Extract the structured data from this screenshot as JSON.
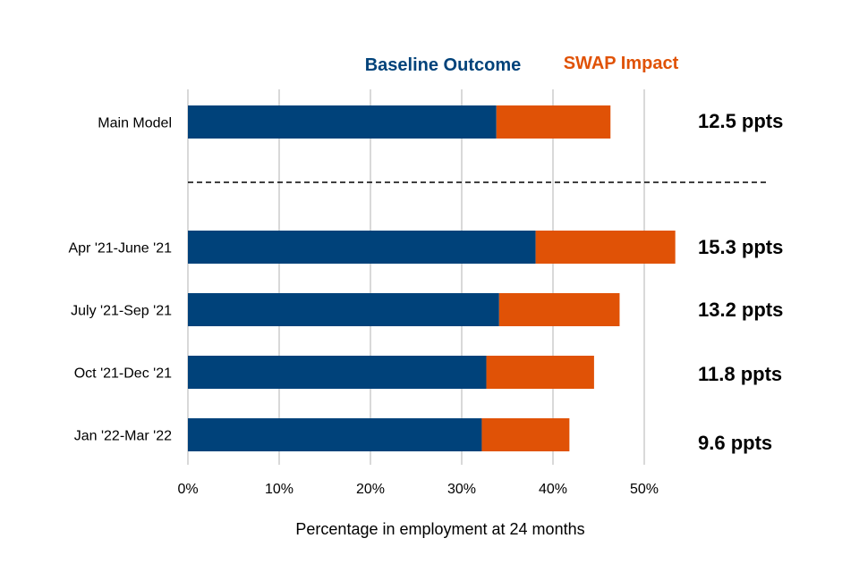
{
  "chart_data": {
    "type": "bar",
    "orientation": "horizontal",
    "stacked": true,
    "title": "",
    "xlabel": "Percentage in employment at 24 months",
    "ylabel": "",
    "xlim": [
      0,
      55
    ],
    "xticks": [
      0,
      10,
      20,
      30,
      40,
      50
    ],
    "xtick_labels": [
      "0%",
      "10%",
      "20%",
      "30%",
      "40%",
      "50%"
    ],
    "grid": "vertical",
    "legend": {
      "placement": "top",
      "entries": [
        "Baseline Outcome",
        "SWAP Impact"
      ]
    },
    "categories": [
      "Main Model",
      "Apr '21-June '21",
      "July '21-Sep '21",
      "Oct '21-Dec '21",
      "Jan '22-Mar '22"
    ],
    "separator_after_category": "Main Model",
    "series": [
      {
        "name": "Baseline Outcome",
        "color": "#00427A",
        "values": [
          33.8,
          38.1,
          34.1,
          32.7,
          32.2
        ]
      },
      {
        "name": "SWAP Impact",
        "color": "#E05206",
        "values": [
          12.5,
          15.3,
          13.2,
          11.8,
          9.6
        ]
      }
    ],
    "annotations": [
      "12.5 ppts",
      "15.3 ppts",
      "13.2 ppts",
      "11.8 ppts",
      "9.6 ppts"
    ]
  }
}
